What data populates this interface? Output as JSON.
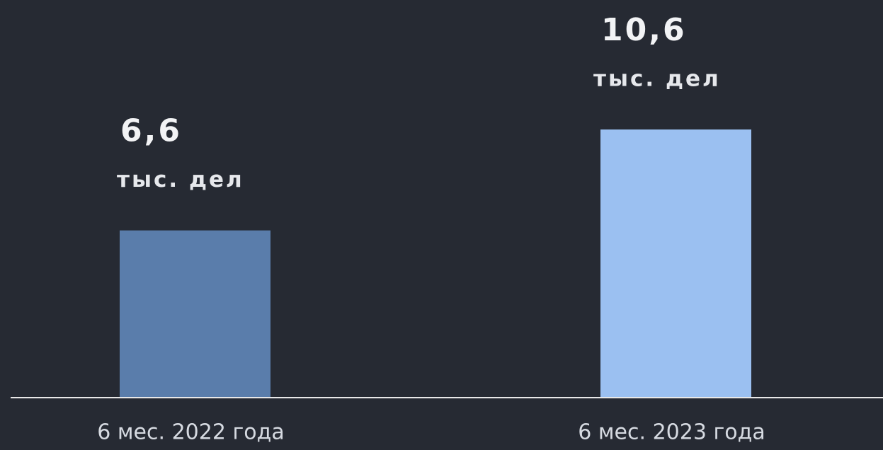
{
  "chart_data": {
    "type": "bar",
    "categories": [
      "6 мес. 2022 года",
      "6 мес. 2023 года"
    ],
    "values": [
      6.6,
      10.6
    ],
    "value_labels": [
      "6,6",
      "10,6"
    ],
    "unit": "тыс. дел",
    "colors": [
      "#5a7dab",
      "#9bc0f1"
    ]
  }
}
